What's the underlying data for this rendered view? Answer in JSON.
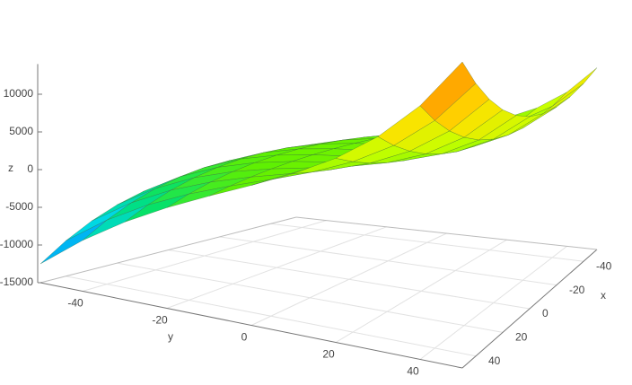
{
  "chart_data": {
    "type": "surface",
    "x_label": "x",
    "y_label": "y",
    "z_label": "z",
    "x": [
      -50,
      -40,
      -30,
      -20,
      -10,
      0,
      10,
      20,
      30,
      40,
      50
    ],
    "y": [
      -50,
      -40,
      -30,
      -20,
      -10,
      0,
      10,
      20,
      30,
      40,
      50
    ],
    "z": [
      [
        -7500,
        -6200,
        -5300,
        -4800,
        -4700,
        -5000,
        -5700,
        -6800,
        -8300,
        -10200,
        -12500
      ],
      [
        -4560,
        -3520,
        -2800,
        -2400,
        -2320,
        -2560,
        -3120,
        -4000,
        -5200,
        -6720,
        -8560
      ],
      [
        -2580,
        -1800,
        -1260,
        -960,
        -900,
        -1080,
        -1500,
        -2160,
        -3060,
        -4200,
        -5580
      ],
      [
        -1320,
        -800,
        -440,
        -240,
        -200,
        -320,
        -600,
        -1040,
        -1640,
        -2400,
        -3320
      ],
      [
        -540,
        -280,
        -100,
        0,
        20,
        -40,
        -180,
        -400,
        -700,
        -1080,
        -1540
      ],
      [
        0,
        0,
        0,
        0,
        0,
        0,
        0,
        0,
        0,
        0,
        0
      ],
      [
        540,
        280,
        100,
        0,
        -20,
        40,
        180,
        400,
        700,
        1080,
        1540
      ],
      [
        1320,
        800,
        440,
        240,
        200,
        320,
        600,
        1040,
        1640,
        2400,
        3320
      ],
      [
        2580,
        1800,
        1260,
        960,
        900,
        1080,
        1500,
        2160,
        3060,
        4200,
        5580
      ],
      [
        4560,
        3520,
        2800,
        2400,
        2320,
        2560,
        3120,
        4000,
        5200,
        6720,
        8560
      ],
      [
        7500,
        6200,
        5300,
        4800,
        4700,
        5000,
        5700,
        6800,
        8300,
        10200,
        12500
      ]
    ],
    "xlim": [
      -50,
      50
    ],
    "ylim": [
      -50,
      50
    ],
    "zlim": [
      -15000,
      14000
    ],
    "xticks": [
      -40,
      -20,
      0,
      20,
      40
    ],
    "yticks": [
      -40,
      -20,
      0,
      20,
      40
    ],
    "zticks": [
      -15000,
      -10000,
      -5000,
      0,
      5000,
      10000
    ],
    "colorscale": [
      "#0020e0",
      "#0090ff",
      "#00d8e8",
      "#00e070",
      "#60f000",
      "#c8ff00",
      "#ffe000",
      "#ff9800",
      "#ff3000"
    ],
    "grid": true
  }
}
